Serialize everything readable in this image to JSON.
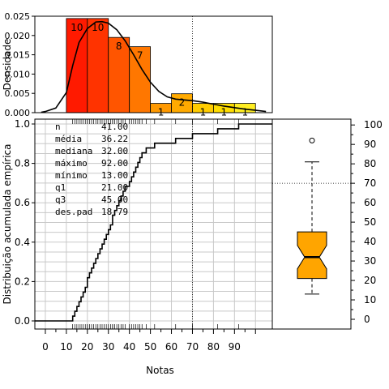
{
  "chart_data": [
    {
      "id": "histogram",
      "type": "bar",
      "ylabel": "Densidade",
      "ylim": [
        0,
        0.025
      ],
      "yticks": [
        0.0,
        0.005,
        0.01,
        0.015,
        0.02,
        0.025
      ],
      "ytick_labels": [
        "0.000",
        "0.005",
        "0.010",
        "0.015",
        "0.020",
        "0.025"
      ],
      "bin_edges": [
        10,
        20,
        30,
        40,
        50,
        60,
        70,
        80,
        90,
        100
      ],
      "counts": [
        10,
        10,
        8,
        7,
        1,
        2,
        1,
        1,
        1
      ],
      "count_labels": [
        "10",
        "10",
        "8",
        "7",
        "1",
        "2",
        "1",
        "1",
        "1"
      ],
      "densities": [
        0.0244,
        0.0244,
        0.0195,
        0.0171,
        0.0024,
        0.0049,
        0.0024,
        0.0024,
        0.0024
      ],
      "bar_colors": [
        "#ff1a00",
        "#ff3300",
        "#ff5500",
        "#ff7700",
        "#ff9900",
        "#ffaa00",
        "#ffcc00",
        "#ffdd00",
        "#ffee22"
      ],
      "density_curve": {
        "x": [
          -2,
          0,
          5,
          10,
          13,
          16,
          20,
          24,
          27,
          30,
          34,
          38,
          42,
          46,
          50,
          54,
          58,
          62,
          66,
          70,
          75,
          80,
          85,
          90,
          95,
          100,
          105
        ],
        "y": [
          0.0001,
          0.0003,
          0.0012,
          0.0052,
          0.0122,
          0.0182,
          0.0218,
          0.0235,
          0.0236,
          0.0232,
          0.0215,
          0.0186,
          0.015,
          0.0112,
          0.0079,
          0.0055,
          0.0041,
          0.0035,
          0.0033,
          0.0031,
          0.0027,
          0.0022,
          0.0017,
          0.0013,
          0.0009,
          0.0006,
          0.0003
        ]
      },
      "reference_line_x": 70
    },
    {
      "id": "ecdf",
      "type": "line",
      "xlabel": "Notas",
      "ylabel": "Distribuição acumulada empírica",
      "xlim": [
        -5,
        108
      ],
      "ylim": [
        0,
        1
      ],
      "xticks": [
        0,
        10,
        20,
        30,
        40,
        50,
        60,
        70,
        80,
        90
      ],
      "xtick_labels": [
        "0",
        "10",
        "20",
        "30",
        "40",
        "50",
        "60",
        "70",
        "80",
        "90"
      ],
      "yticks": [
        0.0,
        0.2,
        0.4,
        0.6,
        0.8,
        1.0
      ],
      "ytick_labels": [
        "0.0",
        "0.2",
        "0.4",
        "0.6",
        "0.8",
        "1.0"
      ],
      "grid": true,
      "observations": [
        13,
        14,
        15,
        16,
        17,
        18,
        19,
        20,
        20,
        21,
        22,
        23,
        24,
        25,
        26,
        27,
        28,
        29,
        30,
        31,
        32,
        32,
        33,
        34,
        35,
        36,
        37,
        38,
        40,
        41,
        42,
        43,
        44,
        45,
        46,
        48,
        52,
        62,
        70,
        82,
        92
      ],
      "reference_line_x": 70,
      "stats": [
        {
          "label": "n",
          "value": "41.00"
        },
        {
          "label": "média",
          "value": "36.22"
        },
        {
          "label": "mediana",
          "value": "32.00"
        },
        {
          "label": "máximo",
          "value": "92.00"
        },
        {
          "label": "mínimo",
          "value": "13.00"
        },
        {
          "label": "q1",
          "value": "21.00"
        },
        {
          "label": "q3",
          "value": "45.00"
        },
        {
          "label": "des.pad",
          "value": "18.79"
        }
      ]
    },
    {
      "id": "boxplot",
      "type": "box",
      "ylim": [
        -5,
        103
      ],
      "yticks": [
        0,
        10,
        20,
        30,
        40,
        50,
        60,
        70,
        80,
        90,
        100
      ],
      "ytick_labels": [
        "0",
        "10",
        "20",
        "30",
        "40",
        "50",
        "60",
        "70",
        "80",
        "90",
        "100"
      ],
      "min": 13,
      "q1": 21,
      "median": 32,
      "q3": 45,
      "max": 81,
      "notch_low": 26,
      "notch_high": 38,
      "outliers": [
        92
      ],
      "fill": "#ffa500",
      "reference_line_y": 70
    }
  ]
}
